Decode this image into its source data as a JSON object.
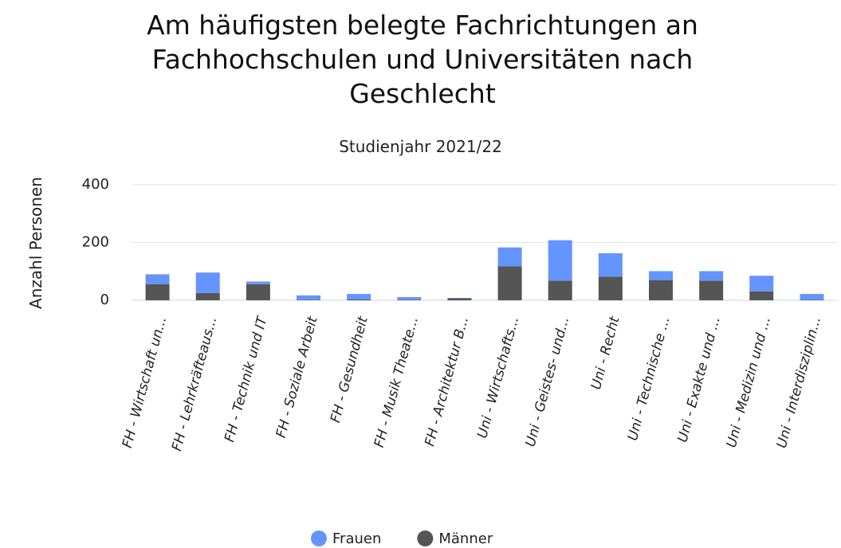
{
  "chart_data": {
    "type": "stacked_bar",
    "title": "Am häufigsten belegte Fachrichtungen an Fachhochschulen und Universitäten nach Geschlecht",
    "subtitle": "Studienjahr 2021/22",
    "y_label": "Anzahl Personen",
    "categories": [
      "FH - Wirtschaft un...",
      "FH - Lehrkräfteaus...",
      "FH - Technik und IT",
      "FH - Soziale Arbeit",
      "FH - Gesundheit",
      "FH - Musik Theate...",
      "FH - Architektur B...",
      "Uni - Wirtschafts...",
      "Uni - Geistes- und...",
      "Uni - Recht",
      "Uni - Technische ...",
      "Uni - Exakte und ...",
      "Uni - Medizin und ...",
      "Uni - Interdisziplin..."
    ],
    "series": [
      {
        "name": "Frauen",
        "color": "#6495ff",
        "values": [
          34,
          71,
          9,
          15,
          19,
          9,
          1,
          65,
          140,
          81,
          31,
          33,
          54,
          20
        ]
      },
      {
        "name": "Männer",
        "color": "#555555",
        "values": [
          56,
          25,
          56,
          2,
          3,
          2,
          7,
          118,
          68,
          82,
          70,
          68,
          31,
          2
        ]
      }
    ],
    "ylim": [
      0,
      400
    ],
    "yticks": [
      0,
      200,
      400
    ],
    "grid": true
  }
}
